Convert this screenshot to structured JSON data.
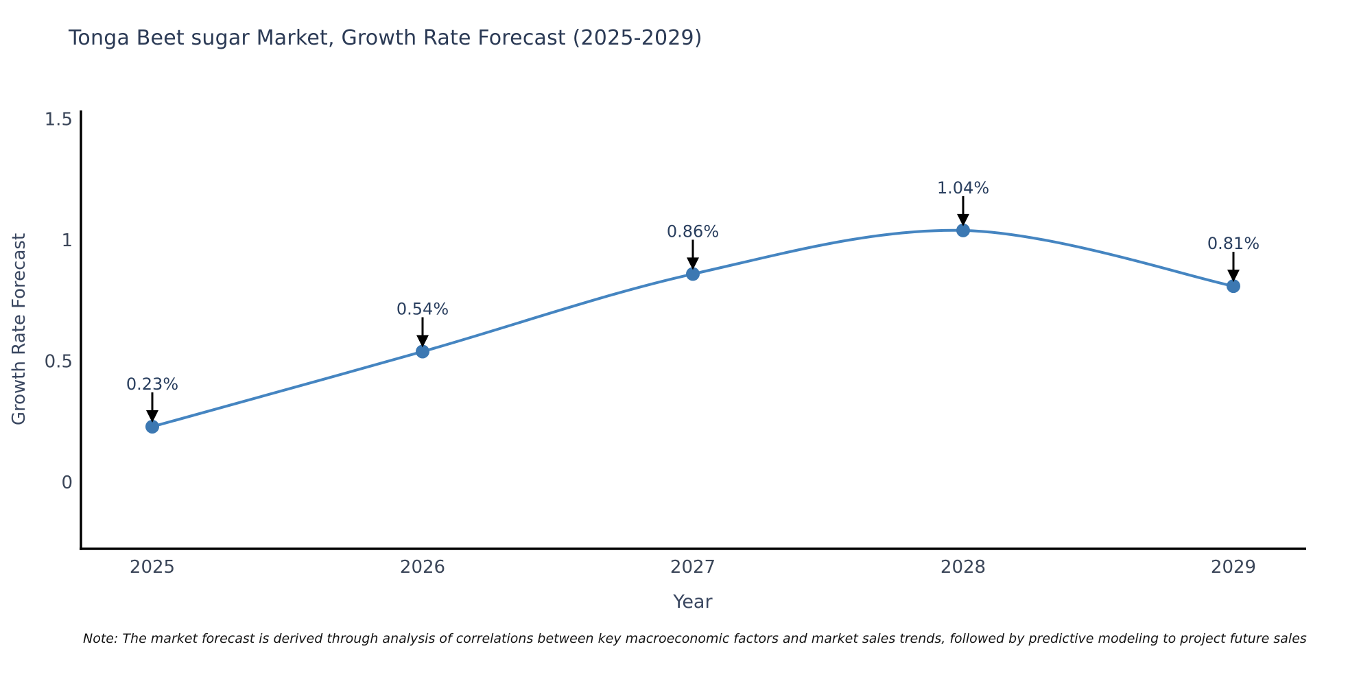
{
  "title": "Tonga Beet sugar Market, Growth Rate Forecast (2025-2029)",
  "note": "Note: The market forecast is derived through analysis of correlations between key macroeconomic factors and market sales trends, followed by predictive modeling to project future sales",
  "chart_data": {
    "type": "line",
    "line_shape": "spline",
    "x": [
      2025,
      2026,
      2027,
      2028,
      2029
    ],
    "categories": [
      "2025",
      "2026",
      "2027",
      "2028",
      "2029"
    ],
    "series": [
      {
        "name": "Growth Rate Forecast",
        "values": [
          0.23,
          0.54,
          0.86,
          1.04,
          0.81
        ]
      }
    ],
    "point_labels": [
      "0.23%",
      "0.54%",
      "0.86%",
      "1.04%",
      "0.81%"
    ],
    "title": "Tonga Beet sugar Market, Growth Rate Forecast (2025-2029)",
    "xlabel": "Year",
    "ylabel": "Growth Rate Forecast",
    "yticks": [
      0,
      0.5,
      1,
      1.5
    ],
    "ytick_labels": [
      "0",
      "0.5",
      "1",
      "1.5"
    ],
    "ylim": [
      -0.274,
      1.535
    ],
    "grid": "off",
    "legend": "none",
    "annotations_have_arrows": true,
    "colors": {
      "line": "#4585c1",
      "marker": "#3c78b2",
      "axis": "#000000",
      "title_text": "#2b3a55",
      "tick_text": "#3a4558",
      "annotation_text": "#2a3f5f",
      "arrow": "#000000",
      "note_text": "#141414",
      "background": "#ffffff"
    }
  }
}
